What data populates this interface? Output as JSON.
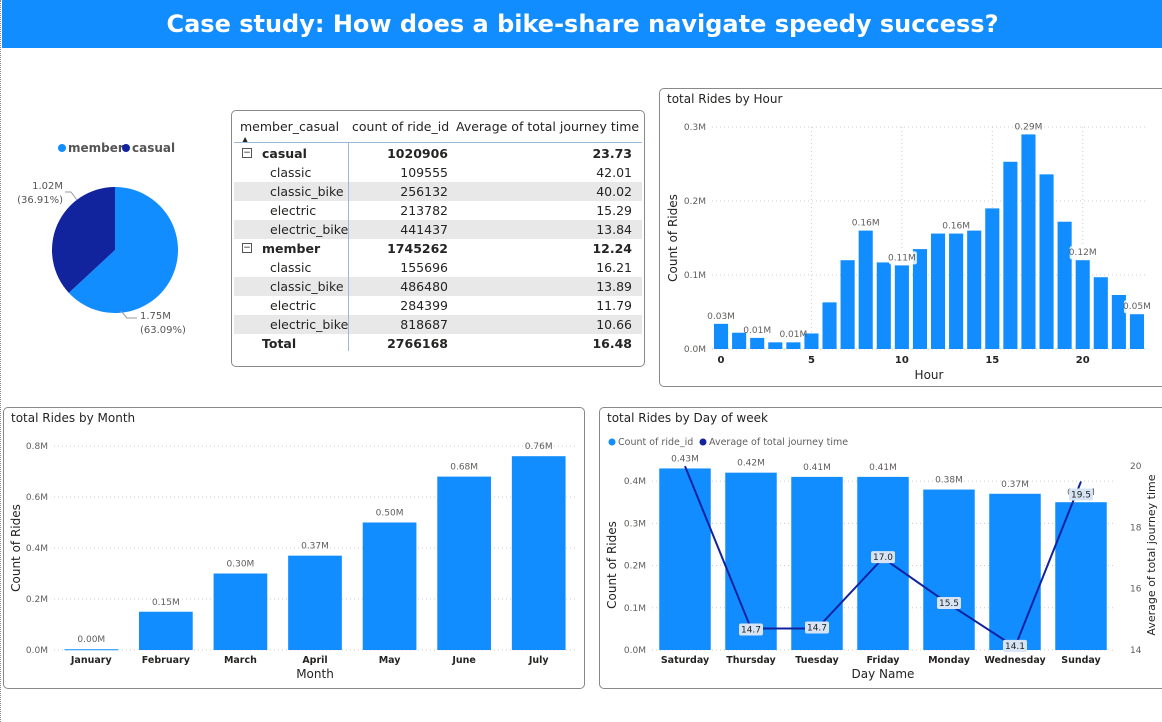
{
  "banner": {
    "title": "Case study: How does a bike-share navigate speedy success?"
  },
  "colors": {
    "primary": "#118DFF",
    "secondary": "#12239E",
    "banner_bg": "#118DFF"
  },
  "pie": {
    "legend": [
      {
        "name": "member",
        "color": "#118DFF"
      },
      {
        "name": "casual",
        "color": "#12239E"
      }
    ],
    "slices": [
      {
        "name": "member",
        "value": 1745262,
        "label": "1.75M",
        "pct": "(63.09%)",
        "color": "#118DFF"
      },
      {
        "name": "casual",
        "value": 1020906,
        "label": "1.02M",
        "pct": "(36.91%)",
        "color": "#12239E"
      }
    ]
  },
  "table": {
    "headers": [
      "member_casual",
      "count of ride_id",
      "Average of total journey time"
    ],
    "rows": [
      {
        "label": "casual",
        "count": "1020906",
        "avg": "23.73",
        "group": true
      },
      {
        "label": "classic",
        "count": "109555",
        "avg": "42.01"
      },
      {
        "label": "classic_bike",
        "count": "256132",
        "avg": "40.02"
      },
      {
        "label": "electric",
        "count": "213782",
        "avg": "15.29"
      },
      {
        "label": "electric_bike",
        "count": "441437",
        "avg": "13.84"
      },
      {
        "label": "member",
        "count": "1745262",
        "avg": "12.24",
        "group": true
      },
      {
        "label": "classic",
        "count": "155696",
        "avg": "16.21"
      },
      {
        "label": "classic_bike",
        "count": "486480",
        "avg": "13.89"
      },
      {
        "label": "electric",
        "count": "284399",
        "avg": "11.79"
      },
      {
        "label": "electric_bike",
        "count": "818687",
        "avg": "10.66"
      }
    ],
    "total": {
      "label": "Total",
      "count": "2766168",
      "avg": "16.48"
    }
  },
  "chart_data": [
    {
      "type": "bar",
      "title": "total Rides by Hour",
      "xlabel": "Hour",
      "ylabel": "Count of Rides",
      "x": [
        0,
        1,
        2,
        3,
        4,
        5,
        6,
        7,
        8,
        9,
        10,
        11,
        12,
        13,
        14,
        15,
        16,
        17,
        18,
        19,
        20,
        21,
        22,
        23
      ],
      "values": [
        0.034,
        0.022,
        0.015,
        0.009,
        0.009,
        0.021,
        0.063,
        0.12,
        0.16,
        0.117,
        0.113,
        0.135,
        0.156,
        0.156,
        0.16,
        0.19,
        0.253,
        0.29,
        0.236,
        0.172,
        0.12,
        0.097,
        0.073,
        0.047
      ],
      "data_labels": [
        {
          "x": 0,
          "text": "0.03M"
        },
        {
          "x": 2,
          "text": "0.01M"
        },
        {
          "x": 4,
          "text": "0.01M"
        },
        {
          "x": 8,
          "text": "0.16M"
        },
        {
          "x": 10,
          "text": "0.11M"
        },
        {
          "x": 13,
          "text": "0.16M"
        },
        {
          "x": 17,
          "text": "0.29M"
        },
        {
          "x": 20,
          "text": "0.12M"
        },
        {
          "x": 23,
          "text": "0.05M"
        }
      ],
      "yticks": [
        "0.0M",
        "0.1M",
        "0.2M",
        "0.3M"
      ],
      "xticks": [
        0,
        5,
        10,
        15,
        20
      ],
      "ylim": [
        0,
        0.3
      ],
      "unit": "M"
    },
    {
      "type": "bar",
      "title": "total Rides by Month",
      "xlabel": "Month",
      "ylabel": "Count of Rides",
      "categories": [
        "January",
        "February",
        "March",
        "April",
        "May",
        "June",
        "July"
      ],
      "values": [
        0.003,
        0.15,
        0.3,
        0.37,
        0.5,
        0.68,
        0.76
      ],
      "labels": [
        "0.00M",
        "0.15M",
        "0.30M",
        "0.37M",
        "0.50M",
        "0.68M",
        "0.76M"
      ],
      "yticks": [
        "0.0M",
        "0.2M",
        "0.4M",
        "0.6M",
        "0.8M"
      ],
      "ylim": [
        0,
        0.8
      ],
      "unit": "M"
    },
    {
      "type": "bar",
      "title": "total Rides by Day of week",
      "xlabel": "Day Name",
      "ylabel": "Count of Rides",
      "y2label": "Average of total journey time",
      "legend": [
        "Count of ride_id",
        "Average of total journey time"
      ],
      "categories": [
        "Saturday",
        "Thursday",
        "Tuesday",
        "Friday",
        "Monday",
        "Wednesday",
        "Sunday"
      ],
      "series": [
        {
          "name": "Count of ride_id",
          "values": [
            0.43,
            0.42,
            0.41,
            0.41,
            0.38,
            0.37,
            0.35
          ],
          "labels": [
            "0.43M",
            "0.42M",
            "0.41M",
            "0.41M",
            "0.38M",
            "0.37M",
            "0.35M"
          ]
        },
        {
          "name": "Average of total journey time",
          "values": [
            20.0,
            14.7,
            14.7,
            17.0,
            15.5,
            14.1,
            19.5
          ],
          "labels": [
            "",
            "14.7",
            "14.7",
            "17.0",
            "15.5",
            "14.1",
            "19.5"
          ]
        }
      ],
      "yticks": [
        "0.0M",
        "0.1M",
        "0.2M",
        "0.3M",
        "0.4M"
      ],
      "y2ticks": [
        "14",
        "16",
        "18",
        "20"
      ],
      "ylim": [
        0,
        0.45
      ],
      "y2lim": [
        14,
        20.2
      ],
      "unit": "M"
    }
  ]
}
